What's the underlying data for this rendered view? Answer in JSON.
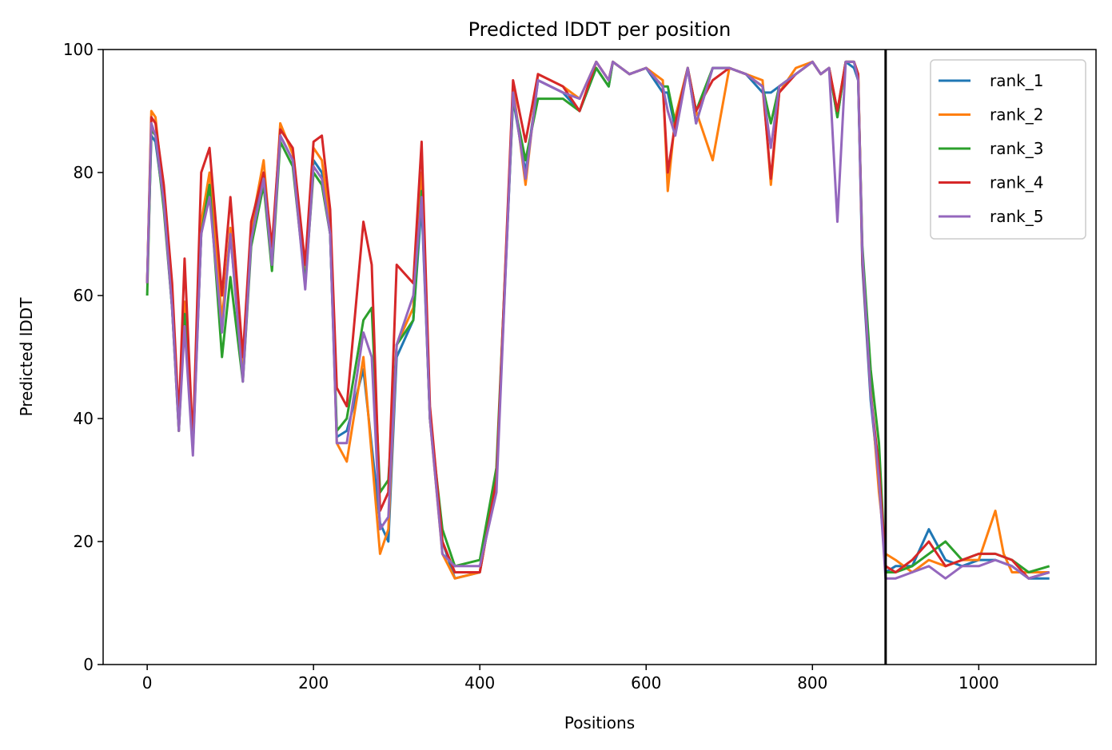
{
  "chart_data": {
    "type": "line",
    "title": "Predicted lDDT per position",
    "xlabel": "Positions",
    "ylabel": "Predicted lDDT",
    "xlim": [
      -53,
      1141
    ],
    "ylim": [
      0,
      100
    ],
    "xticks": [
      0,
      200,
      400,
      600,
      800,
      1000
    ],
    "yticks": [
      0,
      20,
      40,
      60,
      80,
      100
    ],
    "grid": false,
    "legend_position": "upper right",
    "vertical_line_x": 888,
    "vertical_line_color": "#000000",
    "series": [
      {
        "name": "rank_1",
        "color": "#1f77b4",
        "x": [
          0,
          5,
          10,
          20,
          30,
          38,
          45,
          55,
          65,
          75,
          90,
          100,
          115,
          125,
          140,
          150,
          160,
          175,
          190,
          200,
          210,
          220,
          228,
          240,
          260,
          280,
          290,
          300,
          320,
          330,
          340,
          355,
          370,
          400,
          420,
          440,
          455,
          470,
          500,
          520,
          540,
          555,
          560,
          580,
          600,
          620,
          626,
          635,
          650,
          660,
          680,
          700,
          720,
          740,
          750,
          760,
          780,
          800,
          810,
          820,
          830,
          840,
          850,
          855,
          860,
          870,
          880,
          888,
          900,
          920,
          940,
          960,
          980,
          1000,
          1020,
          1040,
          1060,
          1085
        ],
        "y": [
          62,
          86,
          85,
          75,
          58,
          39,
          58,
          35,
          70,
          78,
          55,
          70,
          47,
          70,
          80,
          65,
          86,
          82,
          62,
          82,
          80,
          70,
          37,
          38,
          48,
          23,
          20,
          50,
          56,
          75,
          40,
          20,
          14,
          15,
          30,
          92,
          80,
          95,
          93,
          90,
          97,
          94,
          98,
          96,
          97,
          93,
          93,
          87,
          97,
          88,
          97,
          97,
          96,
          93,
          93,
          94,
          96,
          98,
          96,
          97,
          89,
          98,
          97,
          95,
          65,
          43,
          30,
          15,
          16,
          16,
          22,
          17,
          16,
          17,
          17,
          16,
          14,
          14
        ]
      },
      {
        "name": "rank_2",
        "color": "#ff7f0e",
        "x": [
          0,
          5,
          10,
          20,
          30,
          38,
          45,
          55,
          65,
          75,
          90,
          100,
          115,
          125,
          140,
          150,
          160,
          175,
          190,
          200,
          210,
          220,
          228,
          240,
          260,
          280,
          290,
          300,
          320,
          330,
          340,
          355,
          370,
          400,
          420,
          440,
          455,
          470,
          500,
          520,
          540,
          555,
          560,
          580,
          600,
          620,
          626,
          635,
          650,
          660,
          680,
          700,
          720,
          740,
          750,
          760,
          780,
          800,
          810,
          820,
          830,
          840,
          850,
          855,
          860,
          870,
          880,
          888,
          900,
          920,
          940,
          960,
          980,
          1000,
          1020,
          1030,
          1040,
          1060,
          1085
        ],
        "y": [
          62,
          90,
          89,
          76,
          60,
          38,
          59,
          35,
          72,
          80,
          56,
          71,
          47,
          71,
          82,
          66,
          88,
          83,
          63,
          84,
          82,
          72,
          36,
          33,
          50,
          18,
          22,
          52,
          58,
          80,
          40,
          18,
          14,
          15,
          30,
          94,
          78,
          96,
          94,
          92,
          98,
          95,
          98,
          96,
          97,
          95,
          77,
          89,
          97,
          90,
          82,
          97,
          96,
          95,
          78,
          93,
          97,
          98,
          96,
          97,
          90,
          98,
          98,
          96,
          67,
          45,
          28,
          18,
          17,
          15,
          17,
          16,
          17,
          17,
          25,
          18,
          15,
          15,
          15
        ]
      },
      {
        "name": "rank_3",
        "color": "#2ca02c",
        "x": [
          0,
          5,
          10,
          20,
          30,
          38,
          45,
          55,
          65,
          75,
          90,
          100,
          115,
          125,
          140,
          150,
          160,
          175,
          190,
          200,
          210,
          220,
          228,
          240,
          260,
          270,
          280,
          290,
          300,
          320,
          330,
          340,
          355,
          370,
          400,
          420,
          440,
          455,
          470,
          500,
          520,
          540,
          555,
          560,
          580,
          600,
          620,
          626,
          635,
          650,
          660,
          680,
          700,
          720,
          740,
          750,
          760,
          780,
          800,
          810,
          820,
          830,
          840,
          850,
          855,
          860,
          870,
          880,
          888,
          900,
          920,
          940,
          960,
          980,
          1000,
          1020,
          1040,
          1060,
          1085
        ],
        "y": [
          60,
          87,
          86,
          74,
          58,
          38,
          57,
          36,
          70,
          78,
          50,
          63,
          46,
          68,
          78,
          64,
          85,
          81,
          62,
          80,
          78,
          70,
          38,
          40,
          56,
          58,
          28,
          30,
          52,
          56,
          77,
          40,
          22,
          16,
          17,
          32,
          92,
          82,
          92,
          92,
          90,
          97,
          94,
          98,
          96,
          97,
          94,
          94,
          88,
          97,
          90,
          97,
          97,
          96,
          94,
          88,
          94,
          96,
          98,
          96,
          97,
          89,
          98,
          98,
          95,
          68,
          48,
          36,
          15,
          15,
          16,
          18,
          20,
          17,
          18,
          18,
          17,
          15,
          16
        ]
      },
      {
        "name": "rank_4",
        "color": "#d62728",
        "x": [
          0,
          5,
          10,
          20,
          30,
          38,
          45,
          55,
          65,
          75,
          90,
          100,
          115,
          125,
          140,
          150,
          160,
          175,
          190,
          200,
          210,
          220,
          228,
          240,
          260,
          270,
          280,
          290,
          300,
          320,
          330,
          340,
          355,
          370,
          400,
          420,
          440,
          455,
          470,
          500,
          520,
          540,
          555,
          560,
          580,
          600,
          620,
          626,
          635,
          650,
          660,
          680,
          700,
          720,
          740,
          750,
          760,
          780,
          800,
          810,
          820,
          830,
          840,
          850,
          855,
          860,
          870,
          880,
          888,
          900,
          920,
          940,
          960,
          980,
          1000,
          1020,
          1040,
          1060,
          1085
        ],
        "y": [
          62,
          89,
          88,
          78,
          62,
          40,
          66,
          36,
          80,
          84,
          60,
          76,
          50,
          72,
          80,
          68,
          87,
          84,
          65,
          85,
          86,
          74,
          45,
          42,
          72,
          65,
          25,
          28,
          65,
          62,
          85,
          42,
          20,
          15,
          15,
          30,
          95,
          85,
          96,
          94,
          90,
          98,
          95,
          98,
          96,
          97,
          94,
          80,
          88,
          97,
          90,
          95,
          97,
          96,
          94,
          79,
          93,
          96,
          98,
          96,
          97,
          90,
          98,
          98,
          96,
          66,
          44,
          32,
          16,
          15,
          17,
          20,
          16,
          17,
          18,
          18,
          17,
          14,
          15
        ]
      },
      {
        "name": "rank_5",
        "color": "#9467bd",
        "x": [
          0,
          5,
          10,
          20,
          30,
          38,
          45,
          55,
          65,
          75,
          90,
          100,
          115,
          125,
          140,
          150,
          160,
          175,
          190,
          200,
          210,
          220,
          228,
          240,
          260,
          270,
          280,
          290,
          300,
          320,
          330,
          340,
          355,
          370,
          400,
          420,
          440,
          455,
          470,
          500,
          520,
          540,
          555,
          560,
          580,
          600,
          620,
          626,
          635,
          650,
          660,
          680,
          700,
          720,
          740,
          750,
          760,
          780,
          800,
          810,
          820,
          830,
          840,
          850,
          855,
          860,
          870,
          880,
          888,
          900,
          920,
          940,
          960,
          980,
          1000,
          1020,
          1040,
          1060,
          1085
        ],
        "y": [
          62,
          88,
          86,
          75,
          58,
          38,
          55,
          34,
          70,
          76,
          54,
          70,
          46,
          69,
          79,
          65,
          86,
          82,
          61,
          81,
          79,
          70,
          36,
          36,
          54,
          50,
          22,
          24,
          52,
          60,
          76,
          40,
          18,
          16,
          16,
          28,
          93,
          79,
          95,
          93,
          92,
          98,
          95,
          98,
          96,
          97,
          94,
          90,
          86,
          97,
          88,
          97,
          97,
          96,
          94,
          84,
          94,
          96,
          98,
          96,
          97,
          72,
          98,
          98,
          95,
          67,
          44,
          30,
          14,
          14,
          15,
          16,
          14,
          16,
          16,
          17,
          16,
          14,
          15
        ]
      }
    ]
  }
}
